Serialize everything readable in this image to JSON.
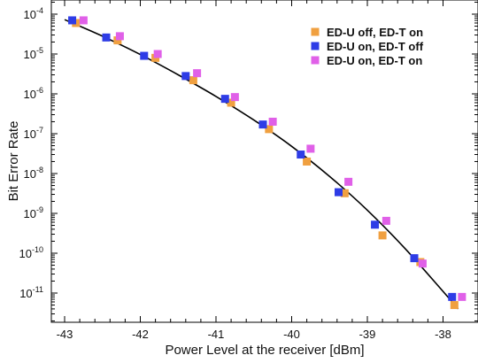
{
  "chart_data": {
    "type": "scatter",
    "xlabel": "Power Level at the receiver [dBm]",
    "ylabel": "Bit Error Rate",
    "xlim": [
      -43.1,
      -37.6
    ],
    "ylim": [
      1e-12,
      0.0001
    ],
    "yscale": "log",
    "x_ticks": [
      "-43",
      "-42",
      "-41",
      "-40",
      "-39",
      "-38"
    ],
    "y_ticks": [
      {
        "base": "10",
        "exp": "-4"
      },
      {
        "base": "10",
        "exp": "-5"
      },
      {
        "base": "10",
        "exp": "-6"
      },
      {
        "base": "10",
        "exp": "-7"
      },
      {
        "base": "10",
        "exp": "-8"
      },
      {
        "base": "10",
        "exp": "-9"
      },
      {
        "base": "10",
        "exp": "-10"
      },
      {
        "base": "10",
        "exp": "-11"
      }
    ],
    "legend_position": "top-right",
    "series": [
      {
        "name": "ED-U off, ED-T on",
        "color": "#f0a040",
        "points": [
          {
            "x": -42.85,
            "y": 6e-05
          },
          {
            "x": -42.3,
            "y": 2.2e-05
          },
          {
            "x": -41.8,
            "y": 8e-06
          },
          {
            "x": -41.3,
            "y": 2.2e-06
          },
          {
            "x": -40.8,
            "y": 6e-07
          },
          {
            "x": -40.3,
            "y": 1.3e-07
          },
          {
            "x": -39.8,
            "y": 2e-08
          },
          {
            "x": -39.3,
            "y": 3.2e-09
          },
          {
            "x": -38.8,
            "y": 2.8e-10
          },
          {
            "x": -38.3,
            "y": 6e-11
          },
          {
            "x": -37.85,
            "y": 5e-12
          }
        ]
      },
      {
        "name": "ED-U on, ED-T off",
        "color": "#2e3ce6",
        "points": [
          {
            "x": -42.9,
            "y": 7e-05
          },
          {
            "x": -42.45,
            "y": 2.6e-05
          },
          {
            "x": -41.95,
            "y": 9e-06
          },
          {
            "x": -41.4,
            "y": 2.8e-06
          },
          {
            "x": -40.88,
            "y": 7.5e-07
          },
          {
            "x": -40.38,
            "y": 1.7e-07
          },
          {
            "x": -39.88,
            "y": 3e-08
          },
          {
            "x": -39.38,
            "y": 3.4e-09
          },
          {
            "x": -38.9,
            "y": 5.2e-10
          },
          {
            "x": -38.38,
            "y": 7.5e-11
          },
          {
            "x": -37.88,
            "y": 8e-12
          }
        ]
      },
      {
        "name": "ED-U on, ED-T on",
        "color": "#e060e8",
        "points": [
          {
            "x": -42.75,
            "y": 7e-05
          },
          {
            "x": -42.27,
            "y": 2.8e-05
          },
          {
            "x": -41.77,
            "y": 1e-05
          },
          {
            "x": -41.25,
            "y": 3.3e-06
          },
          {
            "x": -40.75,
            "y": 8.3e-07
          },
          {
            "x": -40.25,
            "y": 2e-07
          },
          {
            "x": -39.75,
            "y": 4.2e-08
          },
          {
            "x": -39.25,
            "y": 6.2e-09
          },
          {
            "x": -38.75,
            "y": 6.5e-10
          },
          {
            "x": -38.27,
            "y": 5.5e-11
          },
          {
            "x": -37.75,
            "y": 8e-12
          }
        ]
      }
    ],
    "fit_curve": {
      "color": "#000000",
      "points": [
        {
          "x": -43.0,
          "y": 7.3e-05
        },
        {
          "x": -42.5,
          "y": 2.8e-05
        },
        {
          "x": -42.0,
          "y": 9.7e-06
        },
        {
          "x": -41.5,
          "y": 3e-06
        },
        {
          "x": -41.0,
          "y": 8.6e-07
        },
        {
          "x": -40.5,
          "y": 2.2e-07
        },
        {
          "x": -40.0,
          "y": 4.8e-08
        },
        {
          "x": -39.5,
          "y": 8.5e-09
        },
        {
          "x": -39.0,
          "y": 1.2e-09
        },
        {
          "x": -38.5,
          "y": 1.3e-10
        },
        {
          "x": -38.0,
          "y": 1.1e-11
        },
        {
          "x": -37.8,
          "y": 4e-12
        }
      ]
    }
  }
}
